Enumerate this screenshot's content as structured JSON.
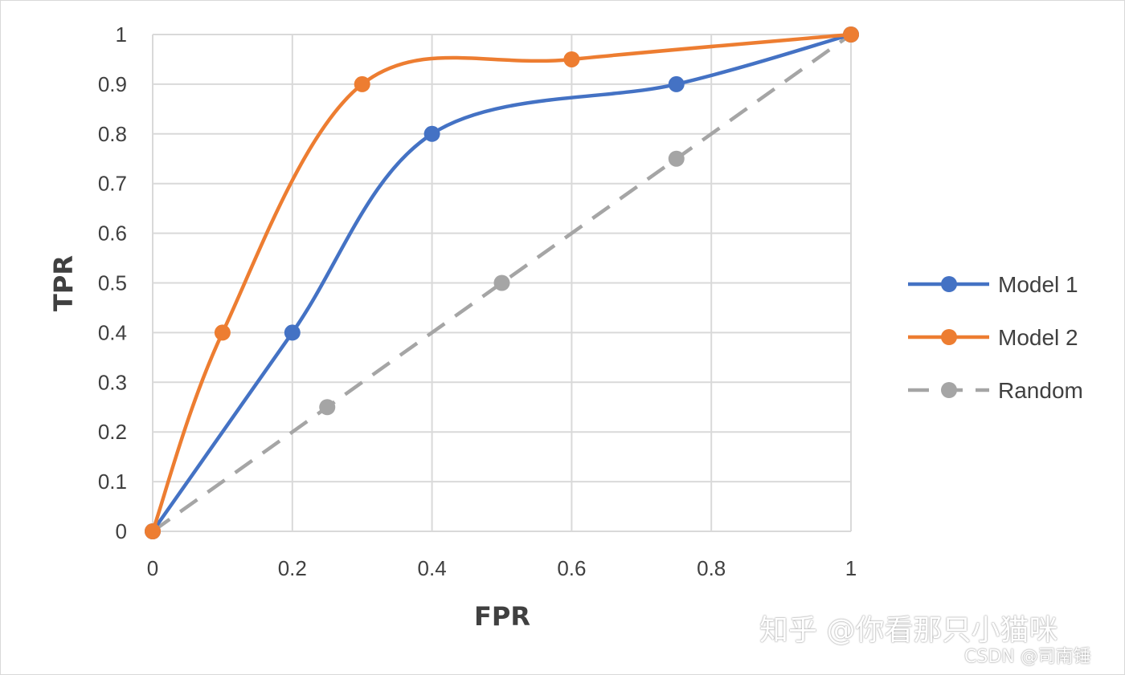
{
  "chart_data": {
    "type": "line",
    "title": "",
    "xlabel": "FPR",
    "ylabel": "TPR",
    "xlim": [
      0,
      1
    ],
    "ylim": [
      0,
      1
    ],
    "x_ticks": [
      "0",
      "0.2",
      "0.4",
      "0.6",
      "0.8",
      "1"
    ],
    "y_ticks": [
      "0",
      "0.1",
      "0.2",
      "0.3",
      "0.4",
      "0.5",
      "0.6",
      "0.7",
      "0.8",
      "0.9",
      "1"
    ],
    "x_tick_values": [
      0,
      0.2,
      0.4,
      0.6,
      0.8,
      1
    ],
    "y_tick_values": [
      0,
      0.1,
      0.2,
      0.3,
      0.4,
      0.5,
      0.6,
      0.7,
      0.8,
      0.9,
      1
    ],
    "grid": true,
    "legend_position": "right",
    "smooth": true,
    "series": [
      {
        "name": "Model 1",
        "color": "#4472c4",
        "style": "solid",
        "points": [
          [
            0,
            0
          ],
          [
            0.2,
            0.4
          ],
          [
            0.4,
            0.8
          ],
          [
            0.75,
            0.9
          ],
          [
            1,
            1
          ]
        ]
      },
      {
        "name": "Model 2",
        "color": "#ed7d31",
        "style": "solid",
        "points": [
          [
            0,
            0
          ],
          [
            0.1,
            0.4
          ],
          [
            0.3,
            0.9
          ],
          [
            0.6,
            0.95
          ],
          [
            1,
            1
          ]
        ]
      },
      {
        "name": "Random",
        "color": "#a5a5a5",
        "style": "dashed",
        "points": [
          [
            0,
            0
          ],
          [
            0.25,
            0.25
          ],
          [
            0.5,
            0.5
          ],
          [
            0.75,
            0.75
          ],
          [
            1,
            1
          ]
        ]
      }
    ]
  },
  "watermark": {
    "main": "知乎 @你看那只小猫咪",
    "sub": "CSDN @司南锤"
  }
}
